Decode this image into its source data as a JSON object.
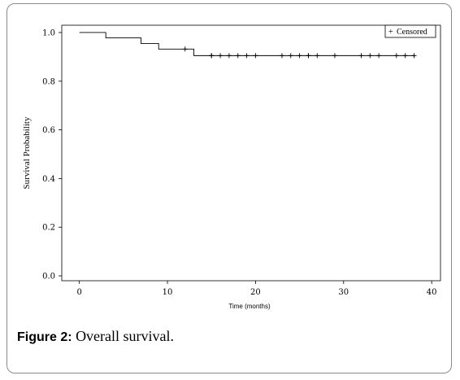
{
  "caption": {
    "label": "Figure 2:",
    "text": " Overall survival."
  },
  "chart_data": {
    "type": "line",
    "title": "",
    "xlabel": "Time (months)",
    "ylabel": "Survival Probability",
    "xlim": [
      -2,
      41
    ],
    "ylim": [
      -0.02,
      1.03
    ],
    "xticks": [
      0,
      10,
      20,
      30,
      40
    ],
    "yticks": [
      0.0,
      0.2,
      0.4,
      0.6,
      0.8,
      1.0
    ],
    "xtick_labels": [
      "0",
      "10",
      "20",
      "30",
      "40"
    ],
    "ytick_labels": [
      "0.0",
      "0.2",
      "0.4",
      "0.6",
      "0.8",
      "1.0"
    ],
    "grid": false,
    "legend": {
      "position": "top-right",
      "entries": [
        "Censored"
      ],
      "marker": "+"
    },
    "series": [
      {
        "step": [
          {
            "x": 0,
            "y": 1.0
          },
          {
            "x": 3,
            "y": 0.978
          },
          {
            "x": 7,
            "y": 0.955
          },
          {
            "x": 9,
            "y": 0.932
          },
          {
            "x": 13,
            "y": 0.905
          },
          {
            "x": 38,
            "y": 0.905
          }
        ],
        "censored": [
          {
            "x": 12,
            "y": 0.932
          },
          {
            "x": 15,
            "y": 0.905
          },
          {
            "x": 15,
            "y": 0.905
          },
          {
            "x": 16,
            "y": 0.905
          },
          {
            "x": 17,
            "y": 0.905
          },
          {
            "x": 18,
            "y": 0.905
          },
          {
            "x": 19,
            "y": 0.905
          },
          {
            "x": 20,
            "y": 0.905
          },
          {
            "x": 23,
            "y": 0.905
          },
          {
            "x": 24,
            "y": 0.905
          },
          {
            "x": 25,
            "y": 0.905
          },
          {
            "x": 26,
            "y": 0.905
          },
          {
            "x": 26,
            "y": 0.905
          },
          {
            "x": 27,
            "y": 0.905
          },
          {
            "x": 29,
            "y": 0.905
          },
          {
            "x": 32,
            "y": 0.905
          },
          {
            "x": 33,
            "y": 0.905
          },
          {
            "x": 34,
            "y": 0.905
          },
          {
            "x": 36,
            "y": 0.905
          },
          {
            "x": 37,
            "y": 0.905
          },
          {
            "x": 38,
            "y": 0.905
          }
        ]
      }
    ]
  }
}
